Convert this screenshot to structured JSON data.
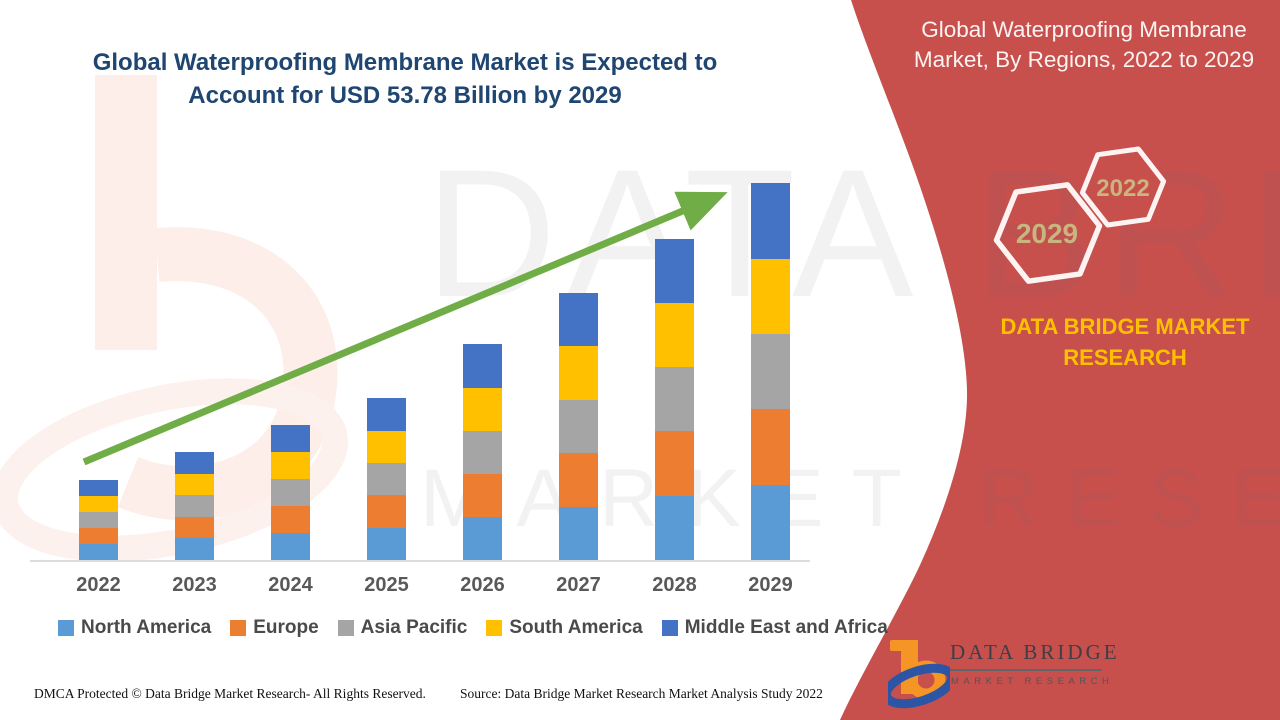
{
  "header": {
    "left_title_line1": "Global Waterproofing Membrane Market is Expected to",
    "left_title_line2": "Account for USD 53.78 Billion by 2029",
    "right_title_line1": "Global Waterproofing Membrane",
    "right_title_line2": "Market, By Regions, 2022 to 2029"
  },
  "side_panel": {
    "accent_color": "#c7504d",
    "badges": [
      {
        "label": "2029"
      },
      {
        "label": "2022"
      }
    ],
    "badge_text_color": "#c8b67e",
    "brand_text_line1": "DATA BRIDGE MARKET",
    "brand_text_line2": "RESEARCH",
    "brand_text_color": "#ffc000"
  },
  "chart_data": {
    "type": "bar",
    "stacked": true,
    "title": "Global Waterproofing Membrane Market, By Regions, 2022 to 2029",
    "unit": "USD Billion",
    "categories": [
      "2022",
      "2023",
      "2024",
      "2025",
      "2026",
      "2027",
      "2028",
      "2029"
    ],
    "series": [
      {
        "name": "North America",
        "color": "#5b9bd5",
        "values": [
          2.3,
          3.08,
          3.86,
          4.62,
          6.16,
          7.64,
          9.18,
          10.76
        ]
      },
      {
        "name": "Europe",
        "color": "#ed7d31",
        "values": [
          2.3,
          3.08,
          3.86,
          4.62,
          6.16,
          7.64,
          9.18,
          10.76
        ]
      },
      {
        "name": "Asia Pacific",
        "color": "#a5a5a5",
        "values": [
          2.3,
          3.08,
          3.86,
          4.62,
          6.16,
          7.64,
          9.18,
          10.76
        ]
      },
      {
        "name": "South America",
        "color": "#ffc000",
        "values": [
          2.3,
          3.08,
          3.86,
          4.62,
          6.16,
          7.64,
          9.18,
          10.76
        ]
      },
      {
        "name": "Middle East and Africa",
        "color": "#4472c4",
        "values": [
          2.3,
          3.08,
          3.86,
          4.62,
          6.16,
          7.64,
          9.18,
          10.76
        ]
      }
    ],
    "estimated_totals": [
      11.5,
      15.4,
      19.3,
      23.1,
      30.8,
      38.2,
      45.9,
      53.78
    ],
    "ylim": [
      0,
      55
    ],
    "axes_visible": false,
    "gridlines": false,
    "legend_position": "bottom",
    "trend_arrow": true,
    "trend_arrow_color": "#70ad47"
  },
  "watermark": {
    "line1": "DATA BRI",
    "line2": "MARKET RESEARCH"
  },
  "logo": {
    "name": "DATA BRIDGE",
    "tagline": "MARKET RESEARCH"
  },
  "footer": {
    "dmca": "DMCA Protected © Data Bridge Market Research- All Rights Reserved.",
    "source": "Source: Data Bridge Market Research Market Analysis Study 2022"
  }
}
